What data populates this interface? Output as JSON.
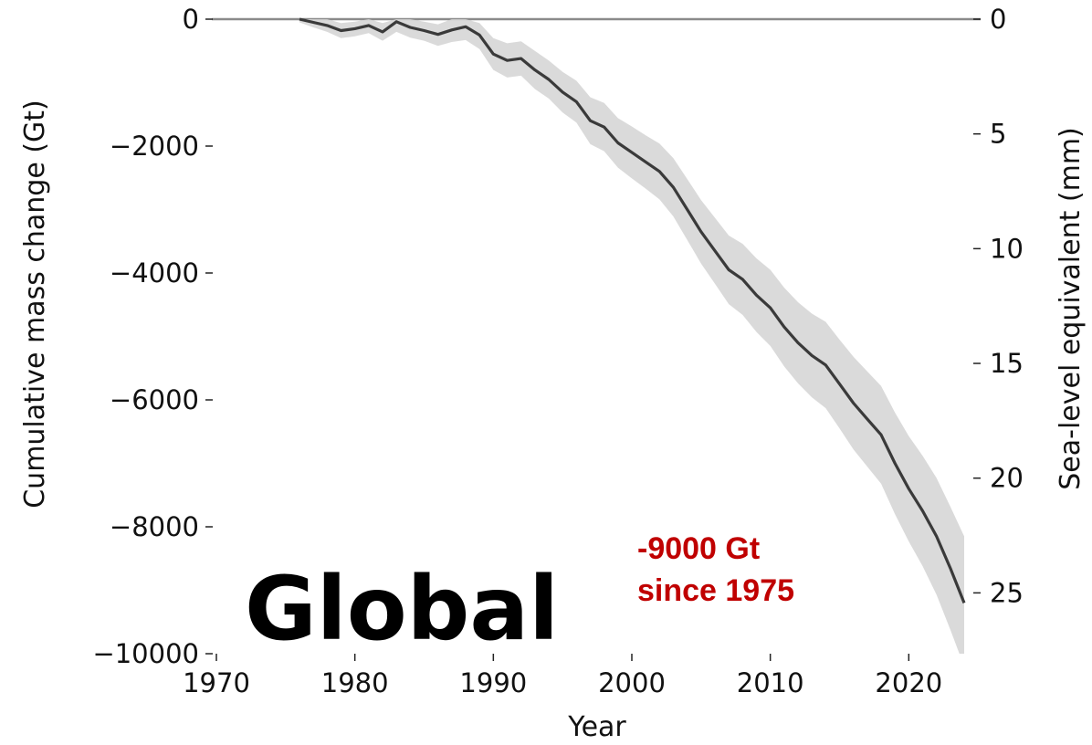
{
  "chart_data": {
    "type": "line",
    "xlabel": "Year",
    "ylabel": "Cumulative mass change (Gt)",
    "ylabel_right": "Sea-level equivalent (mm)",
    "xlim": [
      1970,
      2025
    ],
    "ylim": [
      -10000,
      0
    ],
    "x_ticks": [
      "1970",
      "1980",
      "1990",
      "2000",
      "2010",
      "2020"
    ],
    "y_ticks": [
      "0",
      "−2000",
      "−4000",
      "−6000",
      "−8000",
      "−10000"
    ],
    "y_ticks_right": [
      "0",
      "5",
      "10",
      "15",
      "20",
      "25"
    ],
    "right_axis_mm_per_gt": 0.002765,
    "zero_line": true,
    "grid": false,
    "region_label": "Global",
    "annotation": [
      "-9000 Gt",
      "since 1975"
    ],
    "annotation_color": "#c00000",
    "line_color": "#3a3a3a",
    "band_color": "#d4d4d4",
    "series": [
      {
        "x": [
          1976,
          1977,
          1978,
          1979,
          1980,
          1981,
          1982,
          1983,
          1984,
          1985,
          1986,
          1987,
          1988,
          1989,
          1990,
          1991,
          1992,
          1993,
          1994,
          1995,
          1996,
          1997,
          1998,
          1999,
          2000,
          2001,
          2002,
          2003,
          2004,
          2005,
          2006,
          2007,
          2008,
          2009,
          2010,
          2011,
          2012,
          2013,
          2014,
          2015,
          2016,
          2017,
          2018,
          2019,
          2020,
          2021,
          2022,
          2023,
          2024
        ],
        "y": [
          0,
          -50,
          -100,
          -180,
          -150,
          -100,
          -200,
          -40,
          -130,
          -180,
          -240,
          -170,
          -120,
          -250,
          -550,
          -650,
          -620,
          -800,
          -950,
          -1150,
          -1300,
          -1600,
          -1700,
          -1950,
          -2100,
          -2250,
          -2400,
          -2650,
          -3000,
          -3350,
          -3650,
          -3950,
          -4100,
          -4350,
          -4550,
          -4850,
          -5100,
          -5300,
          -5450,
          -5750,
          -6050,
          -6300,
          -6550,
          -7000,
          -7400,
          -7750,
          -8150,
          -8650,
          -9200
        ],
        "upper": [
          0,
          0,
          0,
          -60,
          -40,
          0,
          -60,
          0,
          0,
          -40,
          -80,
          0,
          0,
          -60,
          -300,
          -380,
          -350,
          -500,
          -650,
          -830,
          -970,
          -1230,
          -1320,
          -1560,
          -1690,
          -1830,
          -1960,
          -2190,
          -2520,
          -2850,
          -3130,
          -3410,
          -3540,
          -3770,
          -3950,
          -4230,
          -4460,
          -4640,
          -4770,
          -5050,
          -5320,
          -5550,
          -5780,
          -6200,
          -6570,
          -6880,
          -7230,
          -7680,
          -8150
        ],
        "lower": [
          -50,
          -130,
          -200,
          -300,
          -270,
          -220,
          -340,
          -200,
          -290,
          -340,
          -420,
          -360,
          -330,
          -470,
          -800,
          -920,
          -890,
          -1100,
          -1250,
          -1470,
          -1630,
          -1970,
          -2080,
          -2340,
          -2510,
          -2670,
          -2840,
          -3110,
          -3480,
          -3850,
          -4170,
          -4490,
          -4660,
          -4930,
          -5150,
          -5470,
          -5740,
          -5960,
          -6130,
          -6450,
          -6780,
          -7050,
          -7320,
          -7800,
          -8230,
          -8620,
          -9070,
          -9620,
          -10200
        ]
      }
    ]
  }
}
